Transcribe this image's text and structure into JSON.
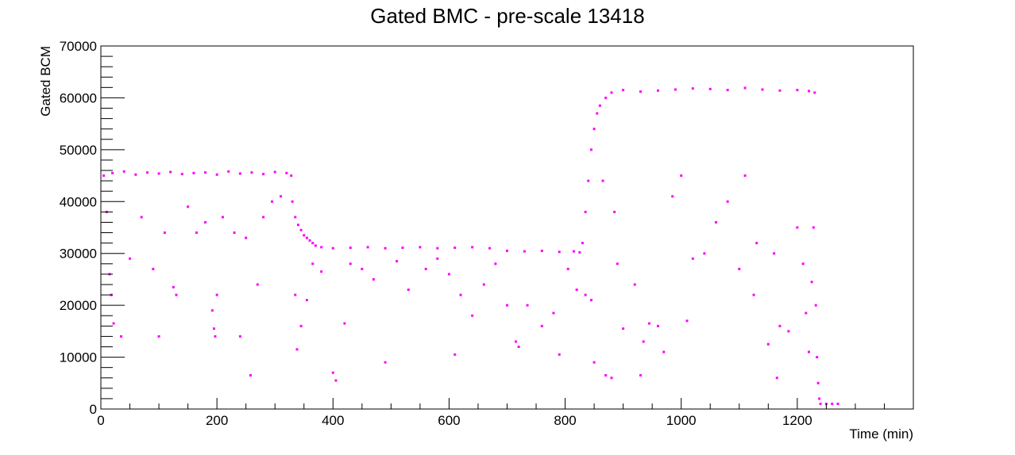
{
  "chart_data": {
    "type": "scatter",
    "title": "Gated BMC - pre-scale 13418",
    "xlabel": "Time (min)",
    "ylabel": "Gated BCM",
    "xlim": [
      0,
      1400
    ],
    "ylim": [
      0,
      70000
    ],
    "x_ticks": [
      0,
      200,
      400,
      600,
      800,
      1000,
      1200
    ],
    "y_ticks": [
      0,
      10000,
      20000,
      30000,
      40000,
      50000,
      60000,
      70000
    ],
    "grid": false,
    "legend": "none",
    "marker_color": "#ff00ff",
    "series": [
      {
        "points": [
          [
            5,
            45000
          ],
          [
            20,
            45500
          ],
          [
            40,
            45800
          ],
          [
            60,
            45200
          ],
          [
            80,
            45600
          ],
          [
            100,
            45400
          ],
          [
            120,
            45700
          ],
          [
            140,
            45300
          ],
          [
            160,
            45500
          ],
          [
            180,
            45600
          ],
          [
            200,
            45200
          ],
          [
            220,
            45800
          ],
          [
            240,
            45400
          ],
          [
            260,
            45600
          ],
          [
            280,
            45300
          ],
          [
            300,
            45700
          ],
          [
            320,
            45500
          ],
          [
            328,
            45000
          ],
          [
            330,
            40000
          ],
          [
            335,
            37000
          ],
          [
            340,
            35500
          ],
          [
            345,
            34500
          ],
          [
            350,
            33500
          ],
          [
            355,
            33000
          ],
          [
            360,
            32500
          ],
          [
            365,
            32000
          ],
          [
            370,
            31500
          ],
          [
            380,
            31200
          ],
          [
            400,
            31000
          ],
          [
            430,
            31100
          ],
          [
            460,
            31200
          ],
          [
            490,
            31000
          ],
          [
            520,
            31100
          ],
          [
            550,
            31200
          ],
          [
            580,
            31000
          ],
          [
            610,
            31100
          ],
          [
            640,
            31200
          ],
          [
            670,
            31000
          ],
          [
            700,
            30500
          ],
          [
            730,
            30400
          ],
          [
            760,
            30500
          ],
          [
            790,
            30300
          ],
          [
            815,
            30400
          ],
          [
            825,
            30200
          ],
          [
            830,
            32000
          ],
          [
            835,
            38000
          ],
          [
            840,
            44000
          ],
          [
            845,
            50000
          ],
          [
            850,
            54000
          ],
          [
            855,
            57000
          ],
          [
            860,
            58500
          ],
          [
            870,
            60000
          ],
          [
            880,
            61000
          ],
          [
            900,
            61500
          ],
          [
            930,
            61200
          ],
          [
            960,
            61400
          ],
          [
            990,
            61600
          ],
          [
            1020,
            61800
          ],
          [
            1050,
            61700
          ],
          [
            1080,
            61500
          ],
          [
            1110,
            61900
          ],
          [
            1140,
            61600
          ],
          [
            1170,
            61400
          ],
          [
            1200,
            61500
          ],
          [
            1220,
            61300
          ],
          [
            1230,
            61000
          ],
          [
            1232,
            20000
          ],
          [
            1234,
            10000
          ],
          [
            1236,
            5000
          ],
          [
            1238,
            2000
          ],
          [
            1240,
            1000
          ],
          [
            1250,
            1000
          ],
          [
            1260,
            1000
          ],
          [
            1270,
            1000
          ],
          [
            10,
            38000
          ],
          [
            15,
            26000
          ],
          [
            18,
            22000
          ],
          [
            22,
            16500
          ],
          [
            35,
            14000
          ],
          [
            50,
            29000
          ],
          [
            70,
            37000
          ],
          [
            90,
            27000
          ],
          [
            100,
            14000
          ],
          [
            110,
            34000
          ],
          [
            125,
            23500
          ],
          [
            130,
            22000
          ],
          [
            150,
            39000
          ],
          [
            165,
            34000
          ],
          [
            180,
            36000
          ],
          [
            192,
            19000
          ],
          [
            195,
            15500
          ],
          [
            197,
            14000
          ],
          [
            200,
            22000
          ],
          [
            210,
            37000
          ],
          [
            230,
            34000
          ],
          [
            240,
            14000
          ],
          [
            250,
            33000
          ],
          [
            258,
            6500
          ],
          [
            270,
            24000
          ],
          [
            280,
            37000
          ],
          [
            295,
            40000
          ],
          [
            310,
            41000
          ],
          [
            335,
            22000
          ],
          [
            338,
            11500
          ],
          [
            345,
            16000
          ],
          [
            355,
            21000
          ],
          [
            365,
            28000
          ],
          [
            380,
            26500
          ],
          [
            400,
            7000
          ],
          [
            405,
            5500
          ],
          [
            420,
            16500
          ],
          [
            430,
            28000
          ],
          [
            450,
            27000
          ],
          [
            470,
            25000
          ],
          [
            490,
            9000
          ],
          [
            510,
            28500
          ],
          [
            530,
            23000
          ],
          [
            560,
            27000
          ],
          [
            580,
            29000
          ],
          [
            600,
            26000
          ],
          [
            610,
            10500
          ],
          [
            620,
            22000
          ],
          [
            640,
            18000
          ],
          [
            660,
            24000
          ],
          [
            680,
            28000
          ],
          [
            700,
            20000
          ],
          [
            715,
            13000
          ],
          [
            720,
            12000
          ],
          [
            735,
            20000
          ],
          [
            760,
            16000
          ],
          [
            780,
            18500
          ],
          [
            790,
            10500
          ],
          [
            805,
            27000
          ],
          [
            820,
            23000
          ],
          [
            835,
            22000
          ],
          [
            845,
            21000
          ],
          [
            850,
            9000
          ],
          [
            865,
            44000
          ],
          [
            870,
            6500
          ],
          [
            880,
            6000
          ],
          [
            885,
            38000
          ],
          [
            890,
            28000
          ],
          [
            900,
            15500
          ],
          [
            920,
            24000
          ],
          [
            930,
            6500
          ],
          [
            935,
            13000
          ],
          [
            945,
            16500
          ],
          [
            960,
            16000
          ],
          [
            970,
            11000
          ],
          [
            985,
            41000
          ],
          [
            1000,
            45000
          ],
          [
            1010,
            17000
          ],
          [
            1020,
            29000
          ],
          [
            1040,
            30000
          ],
          [
            1060,
            36000
          ],
          [
            1080,
            40000
          ],
          [
            1100,
            27000
          ],
          [
            1110,
            45000
          ],
          [
            1125,
            22000
          ],
          [
            1130,
            32000
          ],
          [
            1150,
            12500
          ],
          [
            1160,
            30000
          ],
          [
            1165,
            6000
          ],
          [
            1170,
            16000
          ],
          [
            1185,
            15000
          ],
          [
            1200,
            35000
          ],
          [
            1210,
            28000
          ],
          [
            1215,
            18500
          ],
          [
            1220,
            11000
          ],
          [
            1225,
            24500
          ],
          [
            1228,
            35000
          ]
        ]
      }
    ]
  }
}
